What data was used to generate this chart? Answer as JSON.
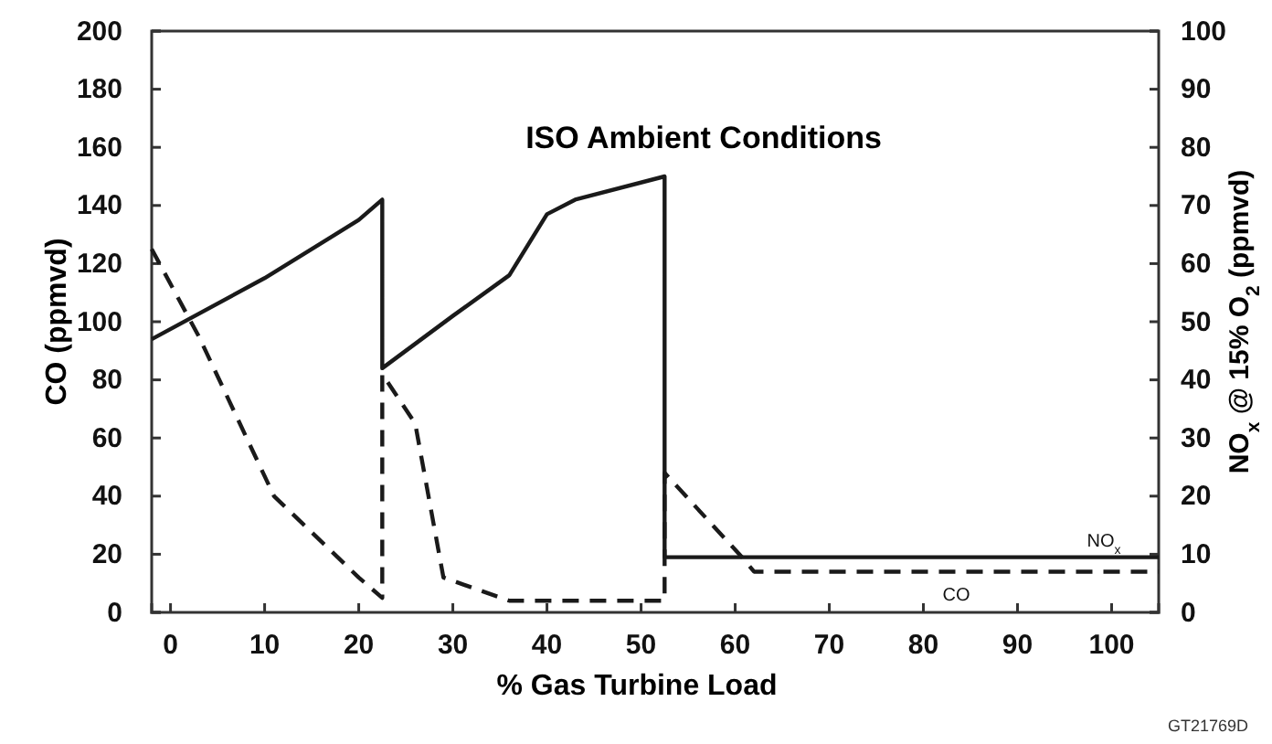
{
  "chart_data": {
    "type": "line",
    "title": "ISO Ambient Conditions",
    "xlabel": "% Gas Turbine Load",
    "ylabel": "CO (ppmvd)",
    "y2label": "NO$_{x}$ @ 15% O$_{2}$ (ppmvd)",
    "xlim": [
      -2,
      105
    ],
    "xticks": [
      0,
      10,
      20,
      30,
      40,
      50,
      60,
      70,
      80,
      90,
      100
    ],
    "ylim": [
      0,
      200
    ],
    "yticks": [
      0,
      20,
      40,
      60,
      80,
      100,
      120,
      140,
      160,
      180,
      200
    ],
    "y2lim": [
      0,
      100
    ],
    "y2ticks": [
      0,
      10,
      20,
      30,
      40,
      50,
      60,
      70,
      80,
      90,
      100
    ],
    "grid": false,
    "legend": false,
    "marker": "none",
    "series": [
      {
        "name": "NO$_{x}$",
        "axis": "y2",
        "color": "#1a1a1a",
        "line_style": "solid",
        "x": [
          -2,
          10,
          20,
          22.5,
          22.5,
          30,
          36,
          40,
          43,
          52.5,
          52.5,
          105
        ],
        "values": [
          47,
          57.5,
          67.5,
          71,
          42,
          51,
          58,
          68.5,
          71,
          75,
          9.5,
          9.5
        ]
      },
      {
        "name": "CO",
        "color": "#1a1a1a",
        "line_style": "dashed",
        "x": [
          -2,
          3,
          11,
          20,
          22.5,
          22.5,
          26,
          29,
          36,
          52.5,
          52.5,
          61,
          62,
          105
        ],
        "values": [
          125,
          95,
          40,
          12,
          5,
          82,
          65,
          12,
          4,
          4,
          48,
          18,
          14,
          14
        ]
      }
    ],
    "annotations": [
      "GT21769D"
    ]
  }
}
